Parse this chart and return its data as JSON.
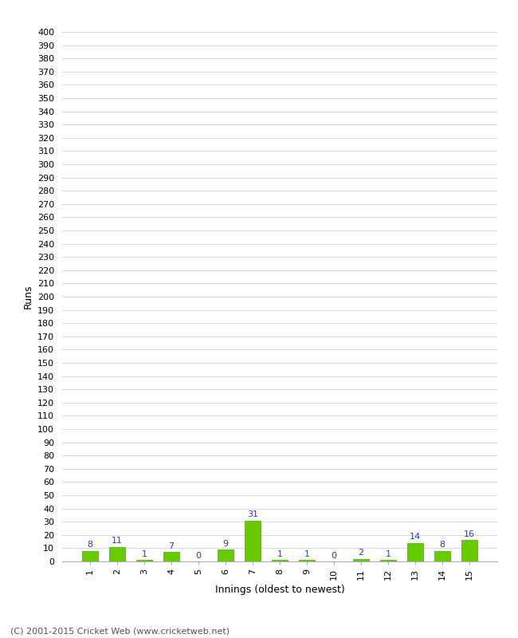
{
  "xlabel": "Innings (oldest to newest)",
  "ylabel": "Runs",
  "categories": [
    1,
    2,
    3,
    4,
    5,
    6,
    7,
    8,
    9,
    10,
    11,
    12,
    13,
    14,
    15
  ],
  "values": [
    8,
    11,
    1,
    7,
    0,
    9,
    31,
    1,
    1,
    0,
    2,
    1,
    14,
    8,
    16
  ],
  "bar_color": "#66cc00",
  "bar_edge_color": "#44aa00",
  "label_color": "#3333cc",
  "ylim": [
    0,
    400
  ],
  "yticks": [
    0,
    10,
    20,
    30,
    40,
    50,
    60,
    70,
    80,
    90,
    100,
    110,
    120,
    130,
    140,
    150,
    160,
    170,
    180,
    190,
    200,
    210,
    220,
    230,
    240,
    250,
    260,
    270,
    280,
    290,
    300,
    310,
    320,
    330,
    340,
    350,
    360,
    370,
    380,
    390,
    400
  ],
  "grid_color": "#cccccc",
  "background_color": "#ffffff",
  "footer": "(C) 2001-2015 Cricket Web (www.cricketweb.net)",
  "label_fontsize": 8,
  "axis_label_fontsize": 9,
  "tick_fontsize": 8,
  "footer_fontsize": 8
}
